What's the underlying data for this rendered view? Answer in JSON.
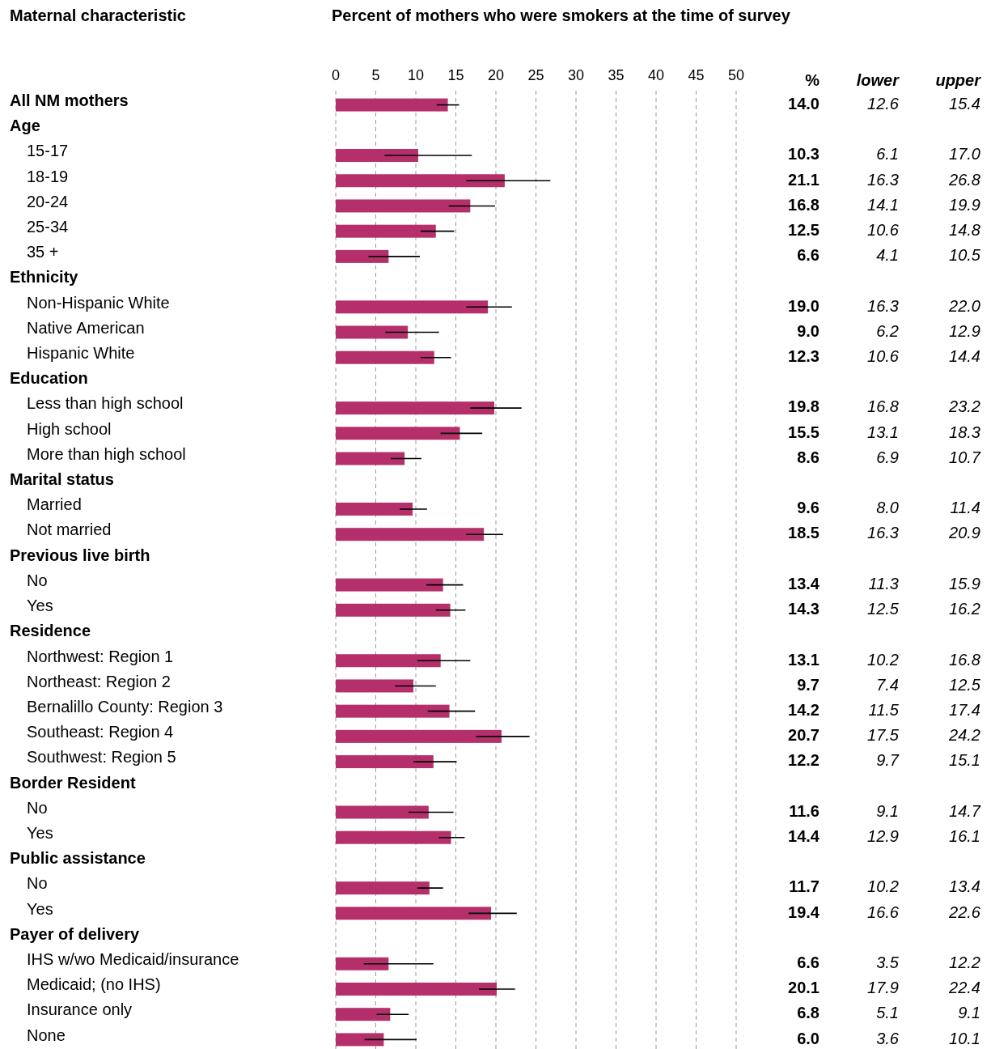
{
  "chart_data": {
    "type": "bar",
    "orientation": "horizontal",
    "title": "Percent of mothers who were smokers at the time of survey",
    "ylabel": "Maternal characteristic",
    "categories": [
      null,
      null,
      "15-17",
      "18-19",
      "20-24",
      "25-34",
      "35 +",
      null,
      "Non-Hispanic White",
      "Native American",
      "Hispanic White",
      null,
      "Less than high school",
      "High school",
      "More than high school",
      null,
      "Married",
      "Not married",
      null,
      "No",
      "Yes",
      null,
      "Northwest: Region 1",
      "Northeast: Region 2",
      "Bernalillo County: Region 3",
      "Southeast: Region 4",
      "Southwest: Region 5",
      null,
      "No",
      "Yes",
      null,
      "No",
      "Yes",
      null,
      "IHS w/wo Medicaid/insurance",
      "Medicaid; (no IHS)",
      "Insurance only",
      "None"
    ],
    "values": [
      14.0,
      null,
      10.3,
      21.1,
      16.8,
      12.5,
      6.6,
      null,
      19.0,
      9.0,
      12.3,
      null,
      19.8,
      15.5,
      8.6,
      null,
      9.6,
      18.5,
      null,
      13.4,
      14.3,
      null,
      13.1,
      9.7,
      14.2,
      20.7,
      12.2,
      null,
      11.6,
      14.4,
      null,
      11.7,
      19.4,
      null,
      6.6,
      20.1,
      6.8,
      6.0
    ],
    "value_labels": [
      "14.0",
      null,
      "10.3",
      "21.1",
      "16.8",
      "12.5",
      "6.6",
      null,
      "19.0",
      "9.0",
      "12.3",
      null,
      "19.8",
      "15.5",
      "8.6",
      null,
      "9.6",
      "18.5",
      null,
      "13.4",
      "14.3",
      null,
      "13.1",
      "9.7",
      "14.2",
      "20.7",
      "12.2",
      null,
      "11.6",
      "14.4",
      null,
      "11.7",
      "19.4",
      null,
      "6.6",
      "20.1",
      "6.8",
      "6.0"
    ],
    "errors": [
      [
        12.6,
        15.4
      ],
      null,
      [
        6.1,
        17.0
      ],
      [
        16.3,
        26.8
      ],
      [
        14.1,
        19.9
      ],
      [
        10.6,
        14.8
      ],
      [
        4.1,
        10.5
      ],
      null,
      [
        16.3,
        22.0
      ],
      [
        6.2,
        12.9
      ],
      [
        10.6,
        14.4
      ],
      null,
      [
        16.8,
        23.2
      ],
      [
        13.1,
        18.3
      ],
      [
        6.9,
        10.7
      ],
      null,
      [
        8.0,
        11.4
      ],
      [
        16.3,
        20.9
      ],
      null,
      [
        11.3,
        15.9
      ],
      [
        12.5,
        16.2
      ],
      null,
      [
        10.2,
        16.8
      ],
      [
        7.4,
        12.5
      ],
      [
        11.5,
        17.4
      ],
      [
        17.5,
        24.2
      ],
      [
        9.7,
        15.1
      ],
      null,
      [
        9.1,
        14.7
      ],
      [
        12.9,
        16.1
      ],
      null,
      [
        10.2,
        13.4
      ],
      [
        16.6,
        22.6
      ],
      null,
      [
        3.5,
        12.2
      ],
      [
        17.9,
        22.4
      ],
      [
        5.1,
        9.1
      ],
      [
        3.6,
        10.1
      ]
    ],
    "color": "#b5306a",
    "xlim": [
      0,
      50
    ],
    "xticks": [
      0,
      5,
      10,
      15,
      20,
      25,
      30,
      35,
      40,
      45,
      50
    ],
    "grid": "x",
    "annotations": [
      "%",
      "lower",
      "upper",
      "All NM mothers",
      "Age",
      "Ethnicity",
      "Education",
      "Marital status",
      "Previous live birth",
      "Residence",
      "Border Resident",
      "Public assistance",
      "Payer of delivery",
      "12.6",
      "15.4",
      "6.1",
      "17.0",
      "16.3",
      "26.8",
      "14.1",
      "19.9",
      "10.6",
      "14.8",
      "4.1",
      "10.5",
      "16.3",
      "22.0",
      "6.2",
      "12.9",
      "10.6",
      "14.4",
      "16.8",
      "23.2",
      "13.1",
      "18.3",
      "6.9",
      "10.7",
      "8.0",
      "11.4",
      "16.3",
      "20.9",
      "11.3",
      "15.9",
      "12.5",
      "16.2",
      "10.2",
      "16.8",
      "7.4",
      "12.5",
      "11.5",
      "17.4",
      "17.5",
      "24.2",
      "9.7",
      "15.1",
      "9.1",
      "14.7",
      "12.9",
      "16.1",
      "10.2",
      "13.4",
      "16.6",
      "22.6",
      "3.5",
      "12.2",
      "17.9",
      "22.4",
      "5.1",
      "9.1",
      "3.6",
      "10.1"
    ]
  }
}
